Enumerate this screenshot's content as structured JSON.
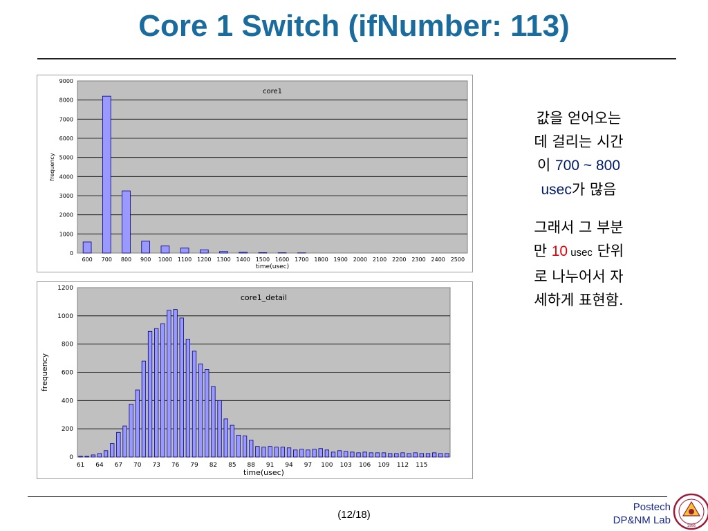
{
  "title": "Core 1 Switch (ifNumber: 113)",
  "colors": {
    "title": "#1a6b9e",
    "bar_fill": "#9999ff",
    "bar_stroke": "#000080",
    "plot_bg": "#c0c0c0",
    "highlight": "#e0000c",
    "footer_text": "#1a2a8c"
  },
  "chart_data": [
    {
      "type": "bar",
      "title": "core1",
      "xlabel": "time(usec)",
      "ylabel": "frequency",
      "ylim": [
        0,
        9000
      ],
      "yticks": [
        "0",
        "1000",
        "2000",
        "3000",
        "4000",
        "5000",
        "6000",
        "7000",
        "8000",
        "9000"
      ],
      "grid": true,
      "categories": [
        "600",
        "700",
        "800",
        "900",
        "1000",
        "1100",
        "1200",
        "1300",
        "1400",
        "1500",
        "1600",
        "1700",
        "1800",
        "1900",
        "2000",
        "2100",
        "2200",
        "2300",
        "2400",
        "2500"
      ],
      "values": [
        580,
        8200,
        3250,
        620,
        370,
        260,
        170,
        80,
        40,
        20,
        15,
        10,
        0,
        0,
        0,
        0,
        0,
        0,
        0,
        0
      ]
    },
    {
      "type": "bar",
      "title": "core1_detail",
      "xlabel": "time(usec)",
      "ylabel": "frequency",
      "ylim": [
        0,
        1200
      ],
      "yticks": [
        "0",
        "200",
        "400",
        "600",
        "800",
        "1000",
        "1200"
      ],
      "grid": true,
      "x_start": 61,
      "xticks": [
        "61",
        "64",
        "67",
        "70",
        "73",
        "76",
        "79",
        "82",
        "85",
        "88",
        "91",
        "94",
        "97",
        "100",
        "103",
        "106",
        "109",
        "112",
        "115"
      ],
      "values": [
        5,
        5,
        15,
        25,
        45,
        95,
        175,
        220,
        375,
        475,
        680,
        890,
        910,
        945,
        1040,
        1045,
        985,
        835,
        750,
        660,
        620,
        500,
        400,
        270,
        225,
        155,
        150,
        120,
        75,
        70,
        75,
        70,
        70,
        65,
        50,
        55,
        50,
        55,
        60,
        50,
        35,
        45,
        40,
        35,
        30,
        35,
        30,
        30,
        30,
        25,
        25,
        30,
        25,
        30,
        25,
        25,
        30,
        25,
        25
      ]
    }
  ],
  "side_text": {
    "p1_line1": "값을 얻어오는",
    "p1_line2": "데 걸리는 시간",
    "p1_line3_a": "이 ",
    "p1_line3_b": "700 ~ 800",
    "p1_line4_a": "usec",
    "p1_line4_b": "가 많음",
    "p2_line1": "그래서 그 부분",
    "p2_line2_a": "만 ",
    "p2_line2_b": "10",
    "p2_line2_c": " usec",
    "p2_line2_d": " 단위",
    "p2_line3": "로 나누어서 자",
    "p2_line4": "세하게 표현함."
  },
  "footer": {
    "page": "(12/18)",
    "lab_line1": "Postech",
    "lab_line2": "DP&NM Lab"
  },
  "seal": {
    "year": "1986",
    "icon": "university-seal-icon"
  }
}
